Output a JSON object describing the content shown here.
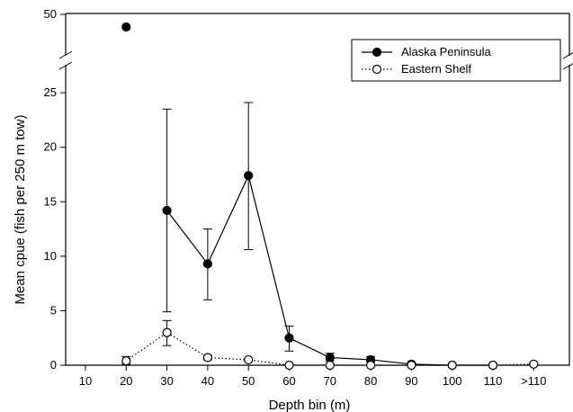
{
  "chart_data": {
    "type": "line",
    "xlabel": "Depth bin (m)",
    "ylabel": "Mean cpue (fish per 250 m tow)",
    "categories": [
      "10",
      "20",
      "30",
      "40",
      "50",
      "60",
      "70",
      "80",
      "90",
      "100",
      "110",
      ">110"
    ],
    "y_ticks_lower": [
      "0",
      "5",
      "10",
      "15",
      "20",
      "25"
    ],
    "y_ticks_upper": [
      "50"
    ],
    "ylim_lower": [
      0,
      27
    ],
    "ylim_upper": [
      45,
      51
    ],
    "axis_break": true,
    "legend_position": "top-right",
    "series": [
      {
        "name": "Alaska Peninsula",
        "marker": "filled-circle",
        "line": "solid",
        "color": "#000000",
        "values": [
          null,
          48,
          14.2,
          9.3,
          17.4,
          2.5,
          0.7,
          0.5,
          0.1,
          0.0,
          0.0,
          null
        ],
        "error_low": [
          null,
          null,
          4.9,
          6.0,
          10.6,
          1.3,
          0.4,
          0.3,
          0.05,
          0.0,
          0.0,
          null
        ],
        "error_high": [
          null,
          null,
          23.5,
          12.5,
          24.1,
          3.6,
          1.1,
          0.8,
          0.2,
          0.0,
          0.0,
          null
        ]
      },
      {
        "name": "Eastern Shelf",
        "marker": "open-circle",
        "line": "dotted",
        "color": "#000000",
        "values": [
          null,
          0.4,
          3.0,
          0.7,
          0.5,
          0.0,
          0.0,
          0.0,
          0.0,
          0.0,
          0.0,
          0.1
        ],
        "error_low": [
          null,
          0.1,
          1.8,
          0.5,
          0.4,
          0.0,
          0.0,
          0.0,
          0.0,
          0.0,
          0.0,
          0.05
        ],
        "error_high": [
          null,
          0.8,
          4.1,
          0.9,
          0.6,
          0.0,
          0.0,
          0.0,
          0.0,
          0.0,
          0.0,
          0.15
        ]
      }
    ]
  }
}
